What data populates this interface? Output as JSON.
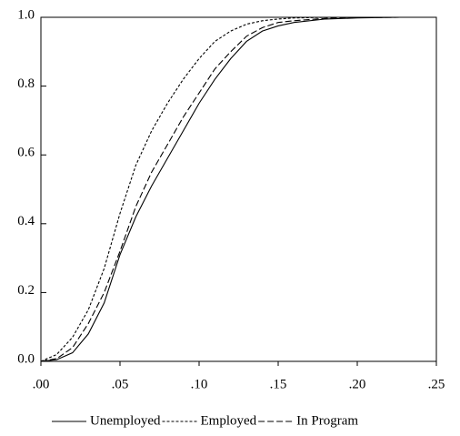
{
  "chart_data": {
    "type": "line",
    "x": [
      0,
      0.01,
      0.02,
      0.03,
      0.04,
      0.05,
      0.06,
      0.07,
      0.08,
      0.09,
      0.1,
      0.11,
      0.12,
      0.13,
      0.14,
      0.15,
      0.16,
      0.18,
      0.2,
      0.227
    ],
    "series": [
      {
        "name": "Unemployed",
        "color": "#000000",
        "dash": "none",
        "values": [
          0,
          0.005,
          0.025,
          0.08,
          0.17,
          0.31,
          0.42,
          0.51,
          0.59,
          0.67,
          0.75,
          0.82,
          0.88,
          0.93,
          0.96,
          0.975,
          0.985,
          0.995,
          0.998,
          1.0
        ]
      },
      {
        "name": "Employed",
        "color": "#000000",
        "dash": "3,2",
        "values": [
          0,
          0.02,
          0.07,
          0.15,
          0.27,
          0.43,
          0.57,
          0.67,
          0.75,
          0.82,
          0.88,
          0.93,
          0.96,
          0.98,
          0.99,
          0.995,
          0.998,
          1.0,
          1.0,
          1.0
        ]
      },
      {
        "name": "In Program",
        "color": "#000000",
        "dash": "7,3",
        "values": [
          0,
          0.008,
          0.04,
          0.11,
          0.2,
          0.32,
          0.45,
          0.55,
          0.63,
          0.71,
          0.78,
          0.85,
          0.9,
          0.945,
          0.97,
          0.985,
          0.99,
          0.997,
          0.999,
          1.0
        ]
      }
    ],
    "xlim": [
      0,
      0.25
    ],
    "xticks": [
      {
        "value": 0,
        "label": ".00"
      },
      {
        "value": 0.05,
        "label": ".05"
      },
      {
        "value": 0.1,
        "label": ".10"
      },
      {
        "value": 0.15,
        "label": ".15"
      },
      {
        "value": 0.2,
        "label": ".20"
      },
      {
        "value": 0.25,
        "label": ".25"
      }
    ],
    "ylim": [
      0,
      1
    ],
    "yticks": [
      {
        "value": 0,
        "label": "0.0"
      },
      0.2,
      0.4,
      0.6,
      0.8,
      {
        "value": 1,
        "label": "1.0"
      }
    ],
    "grid": false,
    "legend": "bottom"
  }
}
